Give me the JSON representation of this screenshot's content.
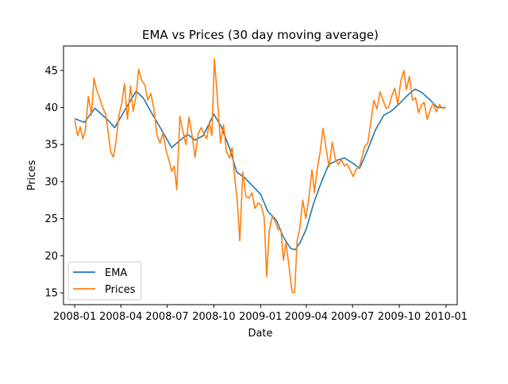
{
  "chart_data": {
    "type": "line",
    "title": "EMA vs Prices (30 day moving average)",
    "xlabel": "Date",
    "ylabel": "Prices",
    "xlim": [
      "2007-12-10",
      "2010-01-23"
    ],
    "ylim": [
      13.4,
      48.3
    ],
    "grid": false,
    "legend_position": "lower-left",
    "x_ticks": [
      "2008-01",
      "2008-04",
      "2008-07",
      "2008-10",
      "2009-01",
      "2009-04",
      "2009-07",
      "2009-10",
      "2010-01"
    ],
    "y_ticks": [
      15,
      20,
      25,
      30,
      35,
      40,
      45
    ],
    "colors": {
      "EMA": "#1f77b4",
      "Prices": "#ff7f0e"
    },
    "series": [
      {
        "name": "EMA",
        "x": [
          "2008-01-01",
          "2008-01-20",
          "2008-02-10",
          "2008-03-05",
          "2008-03-20",
          "2008-04-10",
          "2008-05-01",
          "2008-05-15",
          "2008-06-01",
          "2008-06-20",
          "2008-07-10",
          "2008-07-25",
          "2008-08-10",
          "2008-08-25",
          "2008-09-10",
          "2008-10-01",
          "2008-10-15",
          "2008-11-01",
          "2008-11-15",
          "2008-12-01",
          "2008-12-15",
          "2009-01-01",
          "2009-01-15",
          "2009-02-01",
          "2009-02-15",
          "2009-03-01",
          "2009-03-10",
          "2009-03-20",
          "2009-04-01",
          "2009-04-15",
          "2009-05-01",
          "2009-05-15",
          "2009-06-01",
          "2009-06-15",
          "2009-07-01",
          "2009-07-15",
          "2009-08-01",
          "2009-08-15",
          "2009-09-01",
          "2009-09-15",
          "2009-10-01",
          "2009-10-15",
          "2009-11-01",
          "2009-11-15",
          "2009-12-01",
          "2009-12-15",
          "2010-01-01"
        ],
        "values": [
          38.5,
          38.0,
          39.9,
          38.4,
          37.3,
          39.8,
          42.2,
          41.3,
          39.2,
          37.0,
          34.6,
          35.5,
          36.4,
          35.6,
          36.2,
          39.1,
          37.5,
          34.5,
          31.3,
          30.5,
          29.5,
          28.3,
          26.0,
          24.8,
          22.5,
          21.0,
          20.8,
          21.8,
          23.6,
          27.0,
          30.0,
          32.3,
          32.9,
          33.2,
          32.5,
          31.8,
          34.5,
          37.0,
          39.0,
          39.5,
          40.5,
          41.5,
          42.5,
          42.0,
          41.0,
          40.0,
          40.0
        ]
      },
      {
        "name": "Prices",
        "x": [
          "2008-01-01",
          "2008-01-07",
          "2008-01-12",
          "2008-01-17",
          "2008-01-22",
          "2008-01-28",
          "2008-02-03",
          "2008-02-08",
          "2008-02-13",
          "2008-02-19",
          "2008-02-25",
          "2008-03-02",
          "2008-03-07",
          "2008-03-12",
          "2008-03-17",
          "2008-03-22",
          "2008-03-28",
          "2008-04-03",
          "2008-04-08",
          "2008-04-14",
          "2008-04-20",
          "2008-04-25",
          "2008-05-01",
          "2008-05-06",
          "2008-05-12",
          "2008-05-18",
          "2008-05-24",
          "2008-05-30",
          "2008-06-05",
          "2008-06-11",
          "2008-06-17",
          "2008-06-23",
          "2008-06-29",
          "2008-07-05",
          "2008-07-10",
          "2008-07-15",
          "2008-07-20",
          "2008-07-26",
          "2008-08-01",
          "2008-08-07",
          "2008-08-13",
          "2008-08-19",
          "2008-08-25",
          "2008-08-31",
          "2008-09-06",
          "2008-09-12",
          "2008-09-17",
          "2008-09-22",
          "2008-09-27",
          "2008-10-02",
          "2008-10-08",
          "2008-10-14",
          "2008-10-20",
          "2008-10-26",
          "2008-11-01",
          "2008-11-06",
          "2008-11-11",
          "2008-11-16",
          "2008-11-21",
          "2008-11-27",
          "2008-12-03",
          "2008-12-09",
          "2008-12-15",
          "2008-12-21",
          "2008-12-27",
          "2009-01-02",
          "2009-01-08",
          "2009-01-13",
          "2009-01-18",
          "2009-01-24",
          "2009-01-30",
          "2009-02-05",
          "2009-02-10",
          "2009-02-15",
          "2009-02-20",
          "2009-02-26",
          "2009-03-04",
          "2009-03-09",
          "2009-03-14",
          "2009-03-19",
          "2009-03-25",
          "2009-03-31",
          "2009-04-06",
          "2009-04-12",
          "2009-04-17",
          "2009-04-22",
          "2009-04-28",
          "2009-05-04",
          "2009-05-10",
          "2009-05-16",
          "2009-05-22",
          "2009-05-28",
          "2009-06-03",
          "2009-06-09",
          "2009-06-15",
          "2009-06-20",
          "2009-06-26",
          "2009-07-02",
          "2009-07-08",
          "2009-07-14",
          "2009-07-20",
          "2009-07-25",
          "2009-07-31",
          "2009-08-06",
          "2009-08-12",
          "2009-08-18",
          "2009-08-24",
          "2009-08-30",
          "2009-09-05",
          "2009-09-10",
          "2009-09-16",
          "2009-09-22",
          "2009-09-28",
          "2009-10-04",
          "2009-10-10",
          "2009-10-15",
          "2009-10-21",
          "2009-10-27",
          "2009-11-02",
          "2009-11-08",
          "2009-11-14",
          "2009-11-19",
          "2009-11-25",
          "2009-12-01",
          "2009-12-07",
          "2009-12-13",
          "2009-12-19",
          "2009-12-25",
          "2010-01-01"
        ],
        "values": [
          38.3,
          36.2,
          37.4,
          35.8,
          36.9,
          41.5,
          39.0,
          44.0,
          42.4,
          41.3,
          40.0,
          39.1,
          36.6,
          34.0,
          33.3,
          35.2,
          38.9,
          40.7,
          43.2,
          38.4,
          42.9,
          39.5,
          41.6,
          45.2,
          43.6,
          43.1,
          41.0,
          41.9,
          39.8,
          36.3,
          35.2,
          36.6,
          34.2,
          32.8,
          31.4,
          32.1,
          28.9,
          38.8,
          36.8,
          35.0,
          38.7,
          36.3,
          33.3,
          36.4,
          37.3,
          36.4,
          35.8,
          38.0,
          36.2,
          46.6,
          41.3,
          35.2,
          37.7,
          34.0,
          33.2,
          34.6,
          30.5,
          27.5,
          22.0,
          31.3,
          28.0,
          27.8,
          28.5,
          26.4,
          27.1,
          26.8,
          25.2,
          17.2,
          23.4,
          25.3,
          24.6,
          23.5,
          23.6,
          19.4,
          21.8,
          18.5,
          15.1,
          15.0,
          22.1,
          23.6,
          27.5,
          25.0,
          27.8,
          31.6,
          28.5,
          31.5,
          33.9,
          37.2,
          34.4,
          32.0,
          35.3,
          33.1,
          32.3,
          33.0,
          32.1,
          32.4,
          31.6,
          30.7,
          31.7,
          31.9,
          33.4,
          34.8,
          35.2,
          38.1,
          41.0,
          39.8,
          42.1,
          41.0,
          39.9,
          40.0,
          41.5,
          42.6,
          40.4,
          43.6,
          45.0,
          42.4,
          44.2,
          41.0,
          41.3,
          39.3,
          40.4,
          40.7,
          38.4,
          39.7,
          40.6,
          39.4,
          40.4,
          39.9,
          40.0
        ]
      }
    ]
  }
}
